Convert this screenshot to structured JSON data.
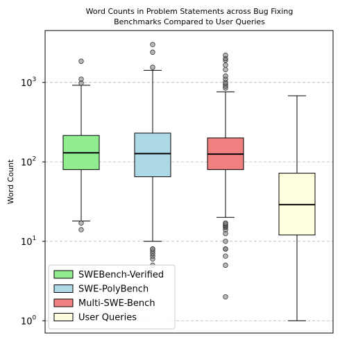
{
  "chart_data": {
    "type": "box",
    "title_lines": [
      "Word Counts in Problem Statements across Bug Fixing",
      "Benchmarks Compared to User Queries"
    ],
    "ylabel": "Word Count",
    "yscale": "log",
    "ylim": [
      0.7,
      4500
    ],
    "yticks": [
      {
        "base": "10",
        "exp": "0",
        "value": 1
      },
      {
        "base": "10",
        "exp": "1",
        "value": 10
      },
      {
        "base": "10",
        "exp": "2",
        "value": 100
      },
      {
        "base": "10",
        "exp": "3",
        "value": 1000
      }
    ],
    "grid": "y-dashed",
    "legend_position": "lower-left",
    "series": [
      {
        "name": "SWEBench-Verified",
        "color": "#90ee90",
        "whisker_low": 18,
        "q1": 80,
        "median": 130,
        "q3": 215,
        "whisker_high": 920,
        "outliers": [
          14,
          17,
          980,
          1100,
          1850
        ]
      },
      {
        "name": "SWE-PolyBench",
        "color": "#add8e6",
        "whisker_low": 10,
        "q1": 65,
        "median": 127,
        "q3": 230,
        "whisker_high": 1420,
        "outliers": [
          5,
          6,
          6.5,
          7,
          7.5,
          8,
          8,
          1550,
          2400,
          3000
        ]
      },
      {
        "name": "Multi-SWE-Bench",
        "color": "#f08080",
        "whisker_low": 20,
        "q1": 80,
        "median": 125,
        "q3": 200,
        "whisker_high": 760,
        "outliers": [
          2,
          5,
          6.5,
          8,
          8,
          10,
          12.5,
          14,
          15,
          15.5,
          16,
          16.5,
          17,
          850,
          900,
          960,
          1000,
          1100,
          1200,
          1450,
          1650,
          1900,
          2000,
          2200
        ]
      },
      {
        "name": "User Queries",
        "color": "#ffffe0",
        "whisker_low": 1,
        "q1": 12,
        "median": 29,
        "q3": 72,
        "whisker_high": 680,
        "outliers": []
      }
    ]
  }
}
